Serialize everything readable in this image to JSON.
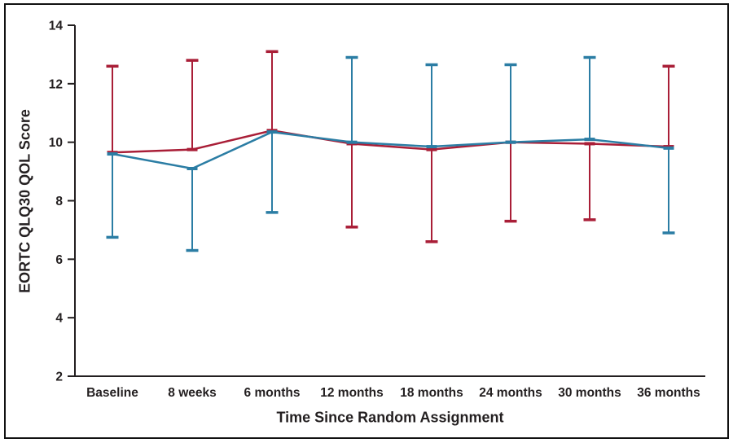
{
  "figure": {
    "background": "#ffffff",
    "border_color": "#111111",
    "axis_color": "#231f20",
    "text_color": "#231f20"
  },
  "chart_data": {
    "type": "line",
    "title": "",
    "xlabel": "Time Since Random Assignment",
    "ylabel": "EORTC QLQ30 QOL Score",
    "categories": [
      "Baseline",
      "8 weeks",
      "6 months",
      "12 months",
      "18 months",
      "24 months",
      "30 months",
      "36 months"
    ],
    "y_ticks": [
      2,
      4,
      6,
      8,
      10,
      12,
      14
    ],
    "ylim": [
      2,
      14
    ],
    "grid": false,
    "legend_position": "none",
    "series": [
      {
        "name": "red-series",
        "color": "#a91e37",
        "values": [
          9.65,
          9.75,
          10.4,
          9.95,
          9.75,
          10.0,
          9.95,
          9.85
        ],
        "error_upper": [
          12.6,
          12.8,
          13.1,
          null,
          null,
          null,
          null,
          12.6
        ],
        "error_lower": [
          null,
          null,
          null,
          7.1,
          6.6,
          7.3,
          7.35,
          null
        ]
      },
      {
        "name": "blue-series",
        "color": "#2b7da4",
        "values": [
          9.6,
          9.1,
          10.35,
          10.0,
          9.85,
          10.0,
          10.1,
          9.8
        ],
        "error_upper": [
          null,
          null,
          null,
          12.9,
          12.65,
          12.65,
          12.9,
          null
        ],
        "error_lower": [
          6.75,
          6.3,
          7.6,
          null,
          null,
          null,
          null,
          6.9
        ]
      }
    ]
  }
}
